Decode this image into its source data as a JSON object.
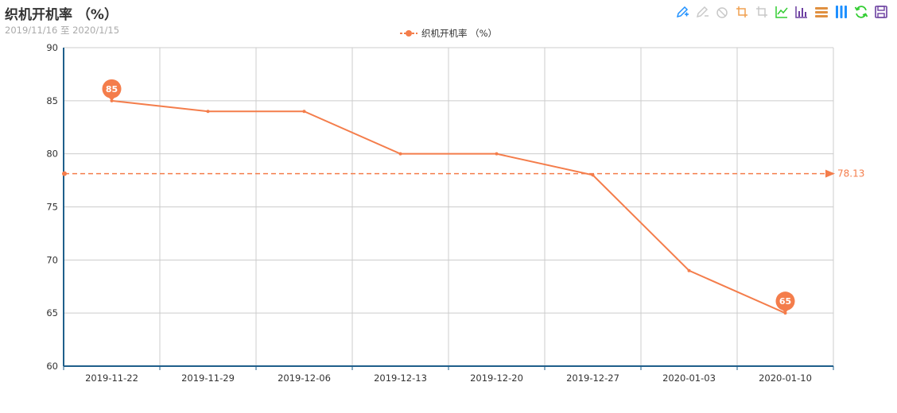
{
  "header": {
    "title": "织机开机率 （%）",
    "subtitle": "2019/11/16 至 2020/1/15"
  },
  "toolbox": {
    "icons": [
      {
        "name": "mark-pen-icon",
        "color": "#1e90ff"
      },
      {
        "name": "mark-undo-icon",
        "color": "#c8c8c8"
      },
      {
        "name": "mark-clear-icon",
        "color": "#c8c8c8"
      },
      {
        "name": "data-zoom-icon",
        "color": "#f0a050"
      },
      {
        "name": "data-zoom-reset-icon",
        "color": "#c8c8c8"
      },
      {
        "name": "line-chart-icon",
        "color": "#32cd32"
      },
      {
        "name": "bar-chart-icon",
        "color": "#6b3fa0"
      },
      {
        "name": "stack-icon",
        "color": "#e09040"
      },
      {
        "name": "tiled-icon",
        "color": "#1e90ff"
      },
      {
        "name": "restore-icon",
        "color": "#32cd32"
      },
      {
        "name": "save-image-icon",
        "color": "#6b3fa0"
      }
    ]
  },
  "chart_data": {
    "type": "line",
    "legend_position": "top-center",
    "grid": true,
    "categories": [
      "2019-11-22",
      "2019-11-29",
      "2019-12-06",
      "2019-12-13",
      "2019-12-20",
      "2019-12-27",
      "2020-01-03",
      "2020-01-10"
    ],
    "series": [
      {
        "name": "织机开机率 （%）",
        "color": "#f47d4b",
        "values": [
          85,
          84,
          84,
          80,
          80,
          78,
          69,
          65
        ]
      }
    ],
    "ylim": [
      60,
      90
    ],
    "yticks": [
      60,
      65,
      70,
      75,
      80,
      85,
      90
    ],
    "mark_points": [
      {
        "label": "85",
        "value": 85,
        "category": "2019-11-22"
      },
      {
        "label": "65",
        "value": 65,
        "category": "2020-01-10"
      }
    ],
    "mark_line": {
      "label": "78.13",
      "value": 78.13
    }
  }
}
